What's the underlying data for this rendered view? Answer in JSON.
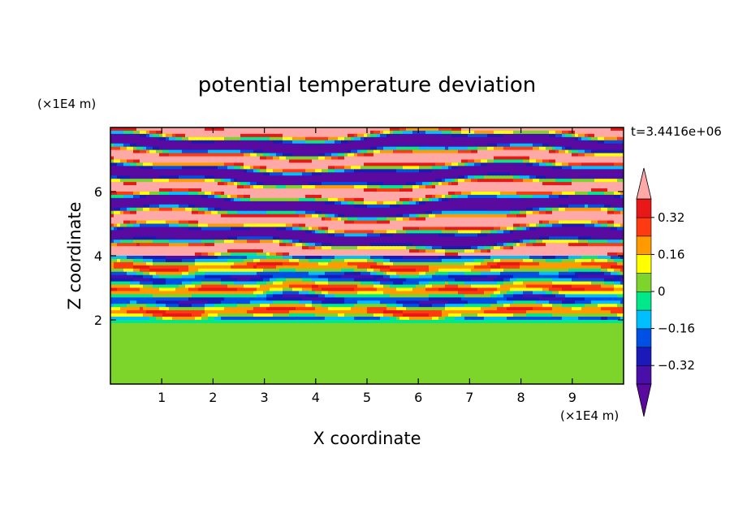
{
  "chart_data": {
    "type": "heatmap",
    "title": "potential temperature deviation",
    "xlabel": "X coordinate",
    "ylabel": "Z coordinate",
    "x_units": "(×1E4 m)",
    "y_units": "(×1E4 m)",
    "time_label": "t=3.4416e+06",
    "xlim": [
      0,
      10
    ],
    "ylim": [
      0,
      8
    ],
    "x_ticks": [
      1,
      2,
      3,
      4,
      5,
      6,
      7,
      8,
      9
    ],
    "y_ticks": [
      2,
      4,
      6
    ],
    "x_tick_labels": [
      "1",
      "2",
      "3",
      "4",
      "5",
      "6",
      "7",
      "8",
      "9"
    ],
    "y_tick_labels": [
      "2",
      "4",
      "6"
    ],
    "grid": false,
    "legend_placement": "right",
    "colorbar": {
      "levels": [
        -0.4,
        -0.32,
        -0.24,
        -0.16,
        -0.08,
        0,
        0.08,
        0.16,
        0.24,
        0.32,
        0.4
      ],
      "colors": [
        "#5a0a9e",
        "#4a0fa8",
        "#1a1ab8",
        "#0050e6",
        "#00bfff",
        "#00e88a",
        "#7dd42a",
        "#ffff00",
        "#ff9b00",
        "#ff3a10",
        "#e81818",
        "#ffa8a8"
      ],
      "tick_values": [
        0.32,
        0.16,
        0,
        -0.16,
        -0.32
      ],
      "tick_labels": [
        "0.32",
        "0.16",
        "0",
        "−0.16",
        "−0.32"
      ],
      "extend": "both"
    },
    "field_description_layers": [
      {
        "z_range": [
          0,
          1.9
        ],
        "dominant": "mixed green/lime turbulent boundary layer"
      },
      {
        "z_range": [
          1.9,
          4.0
        ],
        "dominant": "banded cyan/yellow/blue layers"
      },
      {
        "z_range": [
          4.0,
          8.0
        ],
        "dominant": "alternating pink and purple horizontal bands"
      }
    ]
  }
}
